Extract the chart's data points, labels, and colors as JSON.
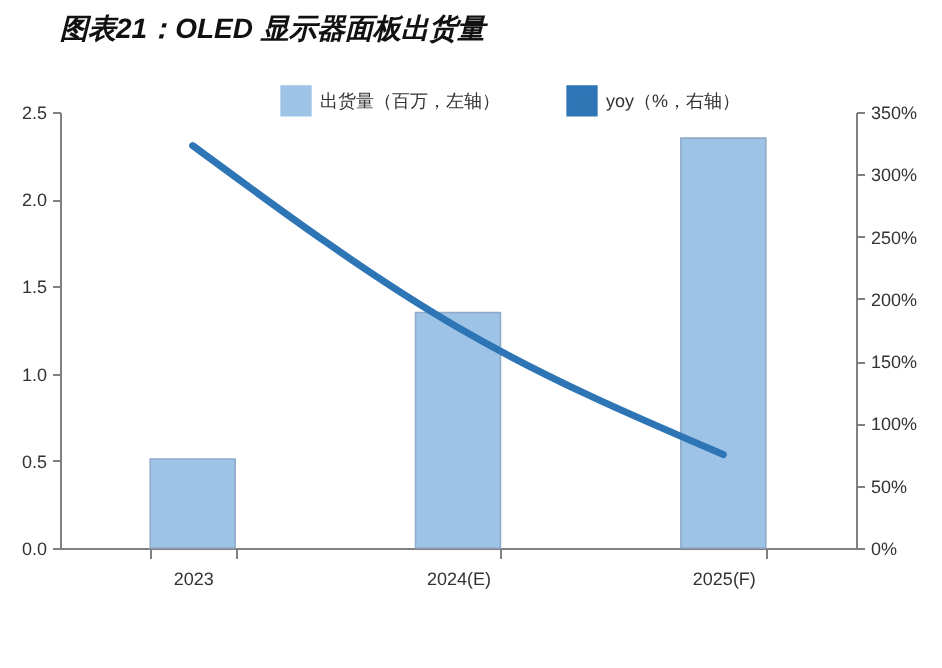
{
  "chart_data": {
    "type": "bar",
    "title": "图表21：OLED 显示器面板出货量",
    "categories": [
      "2023",
      "2024(E)",
      "2025(F)"
    ],
    "series": [
      {
        "name": "出货量（百万，左轴）",
        "color": "#9dc3e6",
        "values": [
          0.51,
          1.35,
          2.35
        ]
      },
      {
        "name": "yoy（%，右轴）",
        "type": "line",
        "axis": "y2",
        "color": "#2e75b6",
        "values": [
          323,
          177,
          75
        ]
      }
    ],
    "ylim": [
      0,
      2.5
    ],
    "yticks": [
      {
        "value": 0,
        "label": "0.0"
      },
      {
        "value": 0.5,
        "label": "0.5"
      },
      {
        "value": 1,
        "label": "1.0"
      },
      {
        "value": 1.5,
        "label": "1.5"
      },
      {
        "value": 2,
        "label": "2.0"
      },
      {
        "value": 2.5,
        "label": "2.5"
      }
    ],
    "y2lim": [
      0,
      350
    ],
    "y2ticks": [
      {
        "value": 0,
        "label": "0%"
      },
      {
        "value": 50,
        "label": "50%"
      },
      {
        "value": 100,
        "label": "100%"
      },
      {
        "value": 150,
        "label": "150%"
      },
      {
        "value": 200,
        "label": "200%"
      },
      {
        "value": 250,
        "label": "250%"
      },
      {
        "value": 300,
        "label": "300%"
      },
      {
        "value": 350,
        "label": "350%"
      }
    ],
    "legend": "top",
    "grid": false,
    "line_style": "solid"
  }
}
